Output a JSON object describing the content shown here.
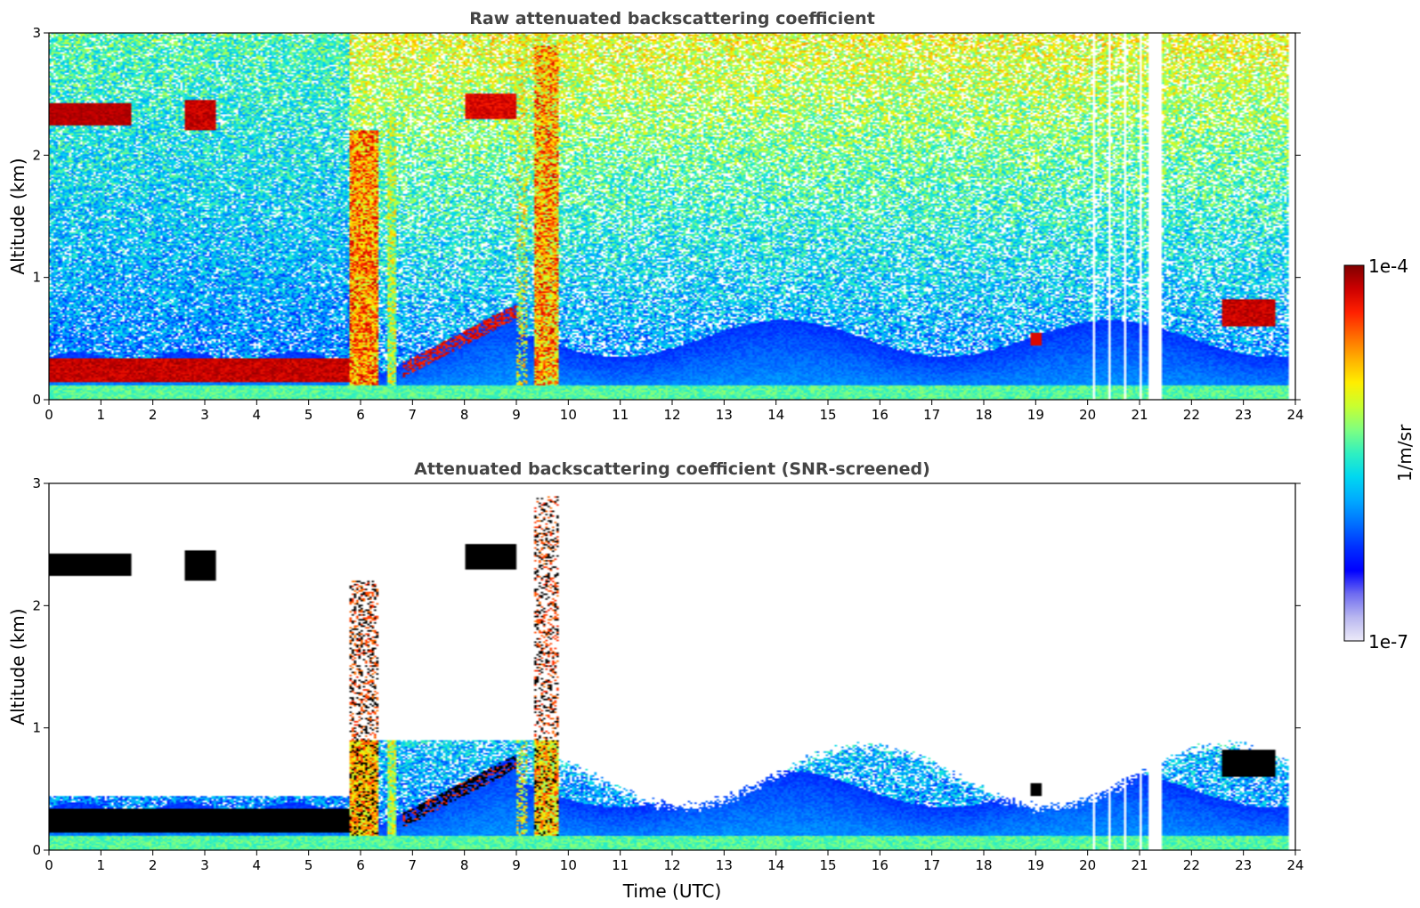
{
  "colors": {
    "jet": [
      "#eceaf8",
      "#b9b7f0",
      "#6f6cf0",
      "#0000ff",
      "#0030ff",
      "#0070ff",
      "#00aaff",
      "#00d8f0",
      "#30f0c0",
      "#80ff80",
      "#c8ff30",
      "#ffee00",
      "#ffb000",
      "#ff6a00",
      "#ff2000",
      "#cc0000",
      "#800000"
    ],
    "screened_fill": "#000000"
  },
  "colorbar": {
    "label": "1/m/sr",
    "max_label": "1e-4",
    "min_label": "1e-7",
    "vmin": 1e-07,
    "vmax": 0.0001,
    "scale": "log"
  },
  "chart_data": [
    {
      "type": "heatmap",
      "title": "Raw attenuated backscattering coefficient",
      "xlabel": "",
      "ylabel": "Altitude (km)",
      "xlim": [
        0,
        24
      ],
      "ylim": [
        0,
        3
      ],
      "x_ticks": [
        "0",
        "1",
        "2",
        "3",
        "4",
        "5",
        "6",
        "7",
        "8",
        "9",
        "10",
        "11",
        "12",
        "13",
        "14",
        "15",
        "16",
        "17",
        "18",
        "19",
        "20",
        "21",
        "22",
        "23",
        "24"
      ],
      "y_ticks": [
        "0",
        "1",
        "2",
        "3"
      ],
      "features": [
        {
          "name": "aerosol boundary layer",
          "t_start": 0,
          "t_end": 5.8,
          "alt_km": [
            0.15,
            0.35
          ],
          "level": "very high"
        },
        {
          "name": "elevated cloud layer",
          "t_start": 0,
          "t_end": 1.6,
          "alt_km": [
            2.25,
            2.4
          ],
          "level": "very high"
        },
        {
          "name": "cloud patch",
          "t_start": 2.6,
          "t_end": 3.2,
          "alt_km": [
            2.2,
            2.45
          ],
          "level": "very high"
        },
        {
          "name": "precipitation column",
          "t_start": 5.9,
          "t_end": 6.3,
          "alt_km": [
            0,
            2.2
          ],
          "level": "high"
        },
        {
          "name": "precipitation column",
          "t_start": 9.4,
          "t_end": 9.8,
          "alt_km": [
            0,
            3.0
          ],
          "level": "high"
        },
        {
          "name": "rising aerosol layer",
          "t_start": 6.8,
          "t_end": 9.0,
          "alt_km": [
            0.3,
            0.9
          ],
          "level": "high"
        },
        {
          "name": "low cloud",
          "t_start": 22.6,
          "t_end": 23.6,
          "alt_km": [
            0.6,
            0.8
          ],
          "level": "very high"
        },
        {
          "name": "data gap",
          "t_start": 21.15,
          "t_end": 21.45,
          "alt_km": [
            0,
            3.0
          ],
          "level": "missing"
        }
      ]
    },
    {
      "type": "heatmap",
      "title": "Attenuated backscattering coefficient (SNR-screened)",
      "xlabel": "Time (UTC)",
      "ylabel": "Altitude (km)",
      "xlim": [
        0,
        24
      ],
      "ylim": [
        0,
        3
      ],
      "x_ticks": [
        "0",
        "1",
        "2",
        "3",
        "4",
        "5",
        "6",
        "7",
        "8",
        "9",
        "10",
        "11",
        "12",
        "13",
        "14",
        "15",
        "16",
        "17",
        "18",
        "19",
        "20",
        "21",
        "22",
        "23",
        "24"
      ],
      "y_ticks": [
        "0",
        "1",
        "2",
        "3"
      ],
      "features": [
        {
          "name": "aerosol boundary layer",
          "t_start": 0,
          "t_end": 5.8,
          "alt_km": [
            0.15,
            0.35
          ],
          "level": "saturated"
        },
        {
          "name": "elevated cloud layer",
          "t_start": 0,
          "t_end": 1.6,
          "alt_km": [
            2.25,
            2.45
          ],
          "level": "saturated"
        },
        {
          "name": "screened boundary layer",
          "t_start": 9.8,
          "t_end": 23.8,
          "alt_km": [
            0,
            0.9
          ],
          "level": "medium"
        },
        {
          "name": "data gap",
          "t_start": 21.15,
          "t_end": 21.45,
          "alt_km": [
            0,
            3.0
          ],
          "level": "missing"
        }
      ]
    }
  ]
}
